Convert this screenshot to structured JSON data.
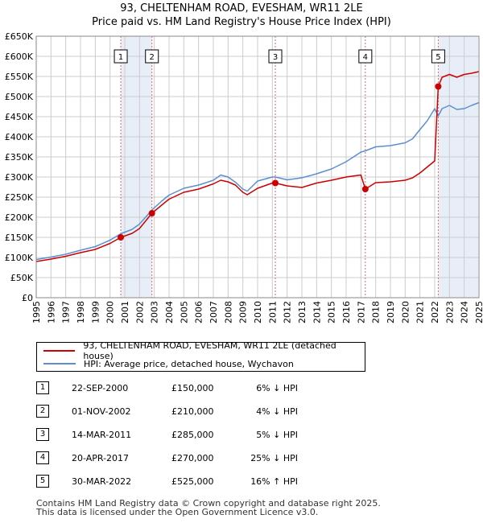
{
  "title_line1": "93, CHELTENHAM ROAD, EVESHAM, WR11 2LE",
  "title_line2": "Price paid vs. HM Land Registry's House Price Index (HPI)",
  "colors": {
    "property": "#cc0000",
    "hpi": "#5b8fd0",
    "shade": "#e8eef8",
    "vline": "#e06666"
  },
  "chart_data": {
    "type": "line",
    "xlim": [
      1995,
      2025
    ],
    "ylim": [
      0,
      650000
    ],
    "x_ticks": [
      "1995",
      "1996",
      "1997",
      "1998",
      "1999",
      "2000",
      "2001",
      "2002",
      "2003",
      "2004",
      "2005",
      "2006",
      "2007",
      "2008",
      "2009",
      "2010",
      "2011",
      "2012",
      "2013",
      "2014",
      "2015",
      "2016",
      "2017",
      "2018",
      "2019",
      "2020",
      "2021",
      "2022",
      "2023",
      "2024",
      "2025"
    ],
    "y_ticks": [
      "£0",
      "£50K",
      "£100K",
      "£150K",
      "£200K",
      "£250K",
      "£300K",
      "£350K",
      "£400K",
      "£450K",
      "£500K",
      "£550K",
      "£600K",
      "£650K"
    ],
    "series": [
      {
        "name": "93, CHELTENHAM ROAD, EVESHAM, WR11 2LE (detached house)",
        "key": "property",
        "x": [
          1995.0,
          1996.0,
          1997.0,
          1998.0,
          1999.0,
          2000.0,
          2000.73,
          2001.5,
          2002.0,
          2002.84,
          2003.5,
          2004.0,
          2005.0,
          2006.0,
          2007.0,
          2007.5,
          2008.0,
          2008.5,
          2009.0,
          2009.3,
          2010.0,
          2011.0,
          2011.2,
          2012.0,
          2013.0,
          2014.0,
          2015.0,
          2016.0,
          2017.0,
          2017.3,
          2018.0,
          2019.0,
          2020.0,
          2020.5,
          2021.0,
          2021.5,
          2022.0,
          2022.24,
          2022.5,
          2023.0,
          2023.5,
          2024.0,
          2024.5,
          2025.0
        ],
        "y": [
          90000,
          96000,
          103000,
          112000,
          120000,
          135000,
          150000,
          160000,
          172000,
          210000,
          230000,
          245000,
          262000,
          270000,
          283000,
          292000,
          288000,
          280000,
          262000,
          256000,
          272000,
          285000,
          285000,
          278000,
          274000,
          285000,
          292000,
          300000,
          305000,
          270000,
          286000,
          288000,
          292000,
          298000,
          310000,
          325000,
          340000,
          525000,
          548000,
          555000,
          548000,
          555000,
          558000,
          562000
        ]
      },
      {
        "name": "HPI: Average price, detached house, Wychavon",
        "key": "hpi",
        "x": [
          1995.0,
          1996.0,
          1997.0,
          1998.0,
          1999.0,
          2000.0,
          2000.73,
          2001.5,
          2002.0,
          2002.84,
          2003.5,
          2004.0,
          2005.0,
          2006.0,
          2007.0,
          2007.5,
          2008.0,
          2008.5,
          2009.0,
          2009.3,
          2010.0,
          2011.0,
          2011.2,
          2012.0,
          2013.0,
          2014.0,
          2015.0,
          2016.0,
          2017.0,
          2017.3,
          2018.0,
          2019.0,
          2020.0,
          2020.5,
          2021.0,
          2021.5,
          2022.0,
          2022.24,
          2022.5,
          2023.0,
          2023.5,
          2024.0,
          2024.5,
          2025.0
        ],
        "y": [
          95000,
          101000,
          108000,
          118000,
          127000,
          143000,
          159000,
          170000,
          183000,
          218000,
          240000,
          255000,
          272000,
          280000,
          292000,
          305000,
          300000,
          287000,
          270000,
          265000,
          290000,
          300000,
          300000,
          293000,
          298000,
          308000,
          320000,
          338000,
          362000,
          365000,
          375000,
          378000,
          385000,
          395000,
          418000,
          440000,
          470000,
          452000,
          470000,
          478000,
          468000,
          470000,
          478000,
          485000
        ]
      }
    ],
    "sales": [
      {
        "n": "1",
        "x": 2000.73,
        "price": 150000
      },
      {
        "n": "2",
        "x": 2002.84,
        "price": 210000
      },
      {
        "n": "3",
        "x": 2011.2,
        "price": 285000
      },
      {
        "n": "4",
        "x": 2017.3,
        "price": 270000
      },
      {
        "n": "5",
        "x": 2022.24,
        "price": 525000
      }
    ],
    "shaded_spans": [
      [
        2000.73,
        2002.84
      ],
      [
        2022.24,
        2024.95
      ]
    ]
  },
  "legend": {
    "property": "93, CHELTENHAM ROAD, EVESHAM, WR11 2LE (detached house)",
    "hpi": "HPI: Average price, detached house, Wychavon"
  },
  "sales_table": [
    {
      "n": "1",
      "date": "22-SEP-2000",
      "price": "£150,000",
      "hpi": "6% ↓ HPI"
    },
    {
      "n": "2",
      "date": "01-NOV-2002",
      "price": "£210,000",
      "hpi": "4% ↓ HPI"
    },
    {
      "n": "3",
      "date": "14-MAR-2011",
      "price": "£285,000",
      "hpi": "5% ↓ HPI"
    },
    {
      "n": "4",
      "date": "20-APR-2017",
      "price": "£270,000",
      "hpi": "25% ↓ HPI"
    },
    {
      "n": "5",
      "date": "30-MAR-2022",
      "price": "£525,000",
      "hpi": "16% ↑ HPI"
    }
  ],
  "footer_line1": "Contains HM Land Registry data © Crown copyright and database right 2025.",
  "footer_line2": "This data is licensed under the Open Government Licence v3.0."
}
